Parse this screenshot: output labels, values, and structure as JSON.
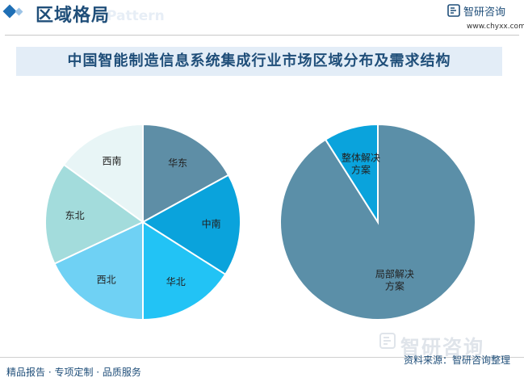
{
  "header": {
    "section_title": "区域格局",
    "pattern_word": "Pattern",
    "brand_name": "智研咨询",
    "brand_url": "www.chyxx.com"
  },
  "banner_title": "中国智能制造信息系统集成行业市场区域分布及需求结构",
  "footer": {
    "left_text": "精品报告 · 专项定制 · 品质服务",
    "source": "资料来源：智研咨询整理",
    "watermark_brand": "智研咨询"
  },
  "colors": {
    "brand": "#1f4e79",
    "accent": "#1f6fb5"
  },
  "chart_data": [
    {
      "type": "pie",
      "title": "",
      "categories": [
        "华东",
        "中南",
        "华北",
        "西北",
        "东北",
        "西南"
      ],
      "values": [
        17,
        17,
        16,
        18,
        17,
        15
      ],
      "colors": [
        "#5e8ea6",
        "#0aa3dc",
        "#22c3f5",
        "#6fd1f4",
        "#a3dcdc",
        "#e8f5f6"
      ],
      "start_angle_deg": 0,
      "direction": "clockwise",
      "labels": [
        "华东",
        "中南",
        "华北",
        "西北",
        "东北",
        "西南"
      ]
    },
    {
      "type": "pie",
      "title": "",
      "categories": [
        "局部解决方案",
        "整体解决方案"
      ],
      "values": [
        91,
        9
      ],
      "colors": [
        "#5b8fa8",
        "#0aa3dc"
      ],
      "start_angle_deg": 0,
      "direction": "clockwise",
      "labels": [
        [
          "局部解决",
          "方案"
        ],
        [
          "整体解决",
          "方案"
        ]
      ]
    }
  ]
}
